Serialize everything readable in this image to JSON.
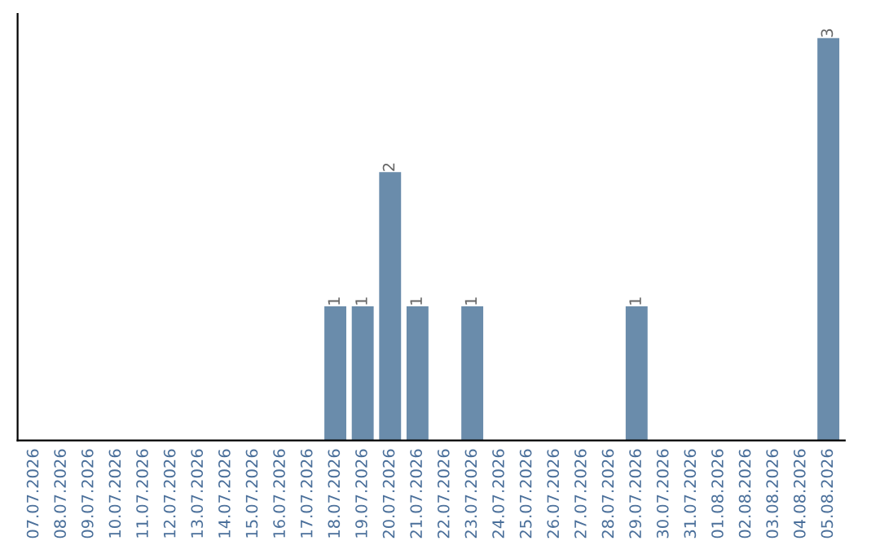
{
  "chart_data": {
    "type": "bar",
    "categories": [
      "07.07.2026",
      "08.07.2026",
      "09.07.2026",
      "10.07.2026",
      "11.07.2026",
      "12.07.2026",
      "13.07.2026",
      "14.07.2026",
      "15.07.2026",
      "16.07.2026",
      "17.07.2026",
      "18.07.2026",
      "19.07.2026",
      "20.07.2026",
      "21.07.2026",
      "22.07.2026",
      "23.07.2026",
      "24.07.2026",
      "25.07.2026",
      "26.07.2026",
      "27.07.2026",
      "28.07.2026",
      "29.07.2026",
      "30.07.2026",
      "31.07.2026",
      "01.08.2026",
      "02.08.2026",
      "03.08.2026",
      "04.08.2026",
      "05.08.2026"
    ],
    "values": [
      0,
      0,
      0,
      0,
      0,
      0,
      0,
      0,
      0,
      0,
      0,
      1,
      1,
      2,
      1,
      0,
      1,
      0,
      0,
      0,
      0,
      0,
      1,
      0,
      0,
      0,
      0,
      0,
      0,
      3
    ],
    "value_labels": [
      null,
      null,
      null,
      null,
      null,
      null,
      null,
      null,
      null,
      null,
      null,
      "1",
      "1",
      "2",
      "1",
      null,
      "1",
      null,
      null,
      null,
      null,
      null,
      "1",
      null,
      null,
      null,
      null,
      null,
      null,
      "3"
    ],
    "color": "#6a8cab",
    "grid": false,
    "legend": false,
    "tick_labels": "x"
  }
}
